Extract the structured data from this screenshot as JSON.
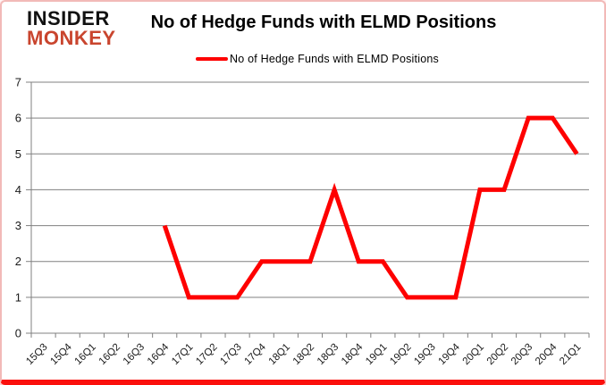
{
  "brand": {
    "line1": "INSIDER",
    "line2": "MONKEY"
  },
  "header": {
    "title": "No of Hedge Funds with ELMD Positions"
  },
  "legend": {
    "label": "No of Hedge Funds with ELMD Positions"
  },
  "colors": {
    "line": "#fe0000",
    "grid": "#808080",
    "axis": "#808080",
    "tick_text": "#1a1a1a",
    "brand_black": "#111111",
    "brand_red": "#c9452e",
    "border_pink": "#f2bab8",
    "border_red": "#fb100c"
  },
  "chart_data": {
    "type": "line",
    "title": "No of Hedge Funds with ELMD Positions",
    "xlabel": "",
    "ylabel": "",
    "categories": [
      "15Q3",
      "15Q4",
      "16Q1",
      "16Q2",
      "16Q3",
      "16Q4",
      "17Q1",
      "17Q2",
      "17Q3",
      "17Q4",
      "18Q1",
      "18Q2",
      "18Q3",
      "18Q4",
      "19Q1",
      "19Q2",
      "19Q3",
      "19Q4",
      "20Q1",
      "20Q2",
      "20Q3",
      "20Q4",
      "21Q1"
    ],
    "series": [
      {
        "name": "No of Hedge Funds with ELMD Positions",
        "color": "#fe0000",
        "values": [
          null,
          null,
          null,
          null,
          null,
          3,
          1,
          1,
          1,
          2,
          2,
          2,
          4,
          2,
          2,
          1,
          1,
          1,
          4,
          4,
          6,
          6,
          5
        ]
      }
    ],
    "ylim": [
      0,
      7
    ],
    "ytick_step": 1,
    "yticks": [
      0,
      1,
      2,
      3,
      4,
      5,
      6,
      7
    ],
    "grid": "horizontal",
    "legend_position": "top"
  }
}
